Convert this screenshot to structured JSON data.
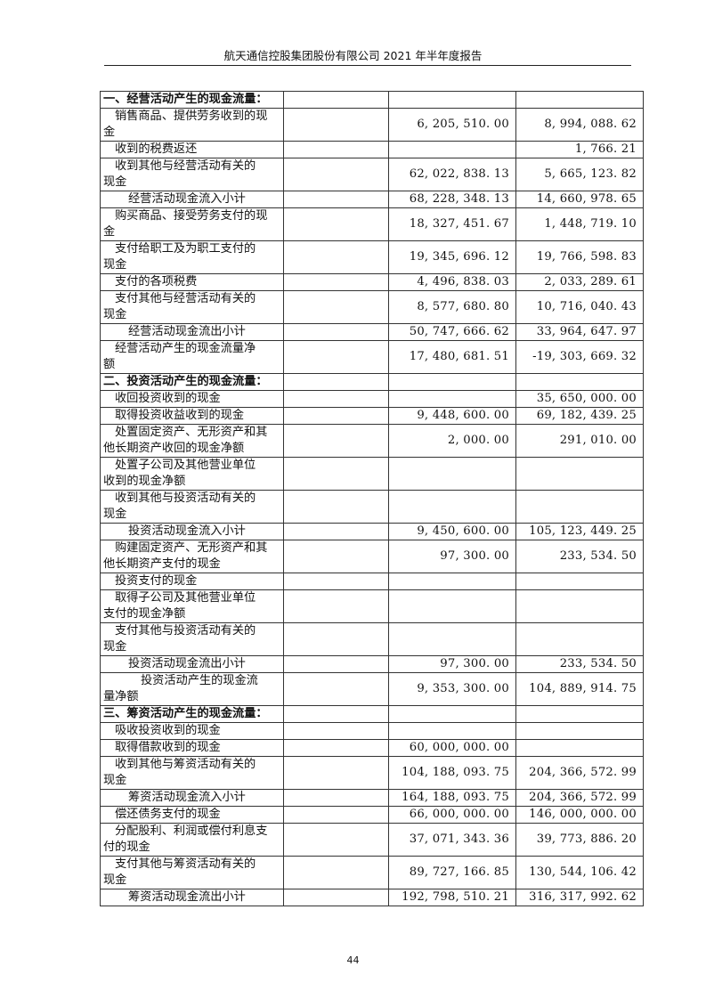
{
  "header": {
    "title": "航天通信控股集团股份有限公司 2021 年半年度报告"
  },
  "page_number": "44",
  "rows": [
    {
      "type": "section",
      "lines": [
        "一、经营活动产生的现金流量："
      ],
      "current": "",
      "prior": ""
    },
    {
      "type": "item",
      "lines": [
        "销售商品、提供劳务收到的现",
        "金"
      ],
      "current": "6, 205, 510. 00",
      "prior": "8, 994, 088. 62"
    },
    {
      "type": "item",
      "lines": [
        "收到的税费返还"
      ],
      "current": "",
      "prior": "1, 766. 21"
    },
    {
      "type": "item",
      "lines": [
        "收到其他与经营活动有关的",
        "现金"
      ],
      "current": "62, 022, 838. 13",
      "prior": "5, 665, 123. 82"
    },
    {
      "type": "subtotal",
      "lines": [
        "经营活动现金流入小计"
      ],
      "current": "68, 228, 348. 13",
      "prior": "14, 660, 978. 65"
    },
    {
      "type": "item",
      "lines": [
        "购买商品、接受劳务支付的现",
        "金"
      ],
      "current": "18, 327, 451. 67",
      "prior": "1, 448, 719. 10"
    },
    {
      "type": "item",
      "lines": [
        "支付给职工及为职工支付的",
        "现金"
      ],
      "current": "19, 345, 696. 12",
      "prior": "19, 766, 598. 83"
    },
    {
      "type": "item",
      "lines": [
        "支付的各项税费"
      ],
      "current": "4, 496, 838. 03",
      "prior": "2, 033, 289. 61"
    },
    {
      "type": "item",
      "lines": [
        "支付其他与经营活动有关的",
        "现金"
      ],
      "current": "8, 577, 680. 80",
      "prior": "10, 716, 040. 43"
    },
    {
      "type": "subtotal",
      "lines": [
        "经营活动现金流出小计"
      ],
      "current": "50, 747, 666. 62",
      "prior": "33, 964, 647. 97"
    },
    {
      "type": "item",
      "lines": [
        "经营活动产生的现金流量净",
        "额"
      ],
      "current": "17, 480, 681. 51",
      "prior": "-19, 303, 669. 32"
    },
    {
      "type": "section",
      "lines": [
        "二、投资活动产生的现金流量："
      ],
      "current": "",
      "prior": ""
    },
    {
      "type": "item",
      "lines": [
        "收回投资收到的现金"
      ],
      "current": "",
      "prior": "35, 650, 000. 00"
    },
    {
      "type": "item",
      "lines": [
        "取得投资收益收到的现金"
      ],
      "current": "9, 448, 600. 00",
      "prior": "69, 182, 439. 25"
    },
    {
      "type": "item",
      "lines": [
        "处置固定资产、无形资产和其",
        "他长期资产收回的现金净额"
      ],
      "current": "2, 000. 00",
      "prior": "291, 010. 00"
    },
    {
      "type": "item",
      "lines": [
        "处置子公司及其他营业单位",
        "收到的现金净额"
      ],
      "current": "",
      "prior": ""
    },
    {
      "type": "item",
      "lines": [
        "收到其他与投资活动有关的",
        "现金"
      ],
      "current": "",
      "prior": ""
    },
    {
      "type": "subtotal",
      "lines": [
        "投资活动现金流入小计"
      ],
      "current": "9, 450, 600. 00",
      "prior": "105, 123, 449. 25"
    },
    {
      "type": "item",
      "lines": [
        "购建固定资产、无形资产和其",
        "他长期资产支付的现金"
      ],
      "current": "97, 300. 00",
      "prior": "233, 534. 50"
    },
    {
      "type": "item",
      "lines": [
        "投资支付的现金"
      ],
      "current": "",
      "prior": ""
    },
    {
      "type": "item",
      "lines": [
        "取得子公司及其他营业单位",
        "支付的现金净额"
      ],
      "current": "",
      "prior": ""
    },
    {
      "type": "item",
      "lines": [
        "支付其他与投资活动有关的",
        "现金"
      ],
      "current": "",
      "prior": ""
    },
    {
      "type": "subtotal",
      "lines": [
        "投资活动现金流出小计"
      ],
      "current": "97, 300. 00",
      "prior": "233, 534. 50"
    },
    {
      "type": "net",
      "lines": [
        "投资活动产生的现金流",
        "量净额"
      ],
      "current": "9, 353, 300. 00",
      "prior": "104, 889, 914. 75"
    },
    {
      "type": "section",
      "lines": [
        "三、筹资活动产生的现金流量："
      ],
      "current": "",
      "prior": ""
    },
    {
      "type": "item",
      "lines": [
        "吸收投资收到的现金"
      ],
      "current": "",
      "prior": ""
    },
    {
      "type": "item",
      "lines": [
        "取得借款收到的现金"
      ],
      "current": "60, 000, 000. 00",
      "prior": ""
    },
    {
      "type": "item",
      "lines": [
        "收到其他与筹资活动有关的",
        "现金"
      ],
      "current": "104, 188, 093. 75",
      "prior": "204, 366, 572. 99"
    },
    {
      "type": "subtotal",
      "lines": [
        "筹资活动现金流入小计"
      ],
      "current": "164, 188, 093. 75",
      "prior": "204, 366, 572. 99"
    },
    {
      "type": "item",
      "lines": [
        "偿还债务支付的现金"
      ],
      "current": "66, 000, 000. 00",
      "prior": "146, 000, 000. 00"
    },
    {
      "type": "item",
      "lines": [
        "分配股利、利润或偿付利息支",
        "付的现金"
      ],
      "current": "37, 071, 343. 36",
      "prior": "39, 773, 886. 20"
    },
    {
      "type": "item",
      "lines": [
        "支付其他与筹资活动有关的",
        "现金"
      ],
      "current": "89, 727, 166. 85",
      "prior": "130, 544, 106. 42"
    },
    {
      "type": "subtotal",
      "lines": [
        "筹资活动现金流出小计"
      ],
      "current": "192, 798, 510. 21",
      "prior": "316, 317, 992. 62"
    }
  ]
}
